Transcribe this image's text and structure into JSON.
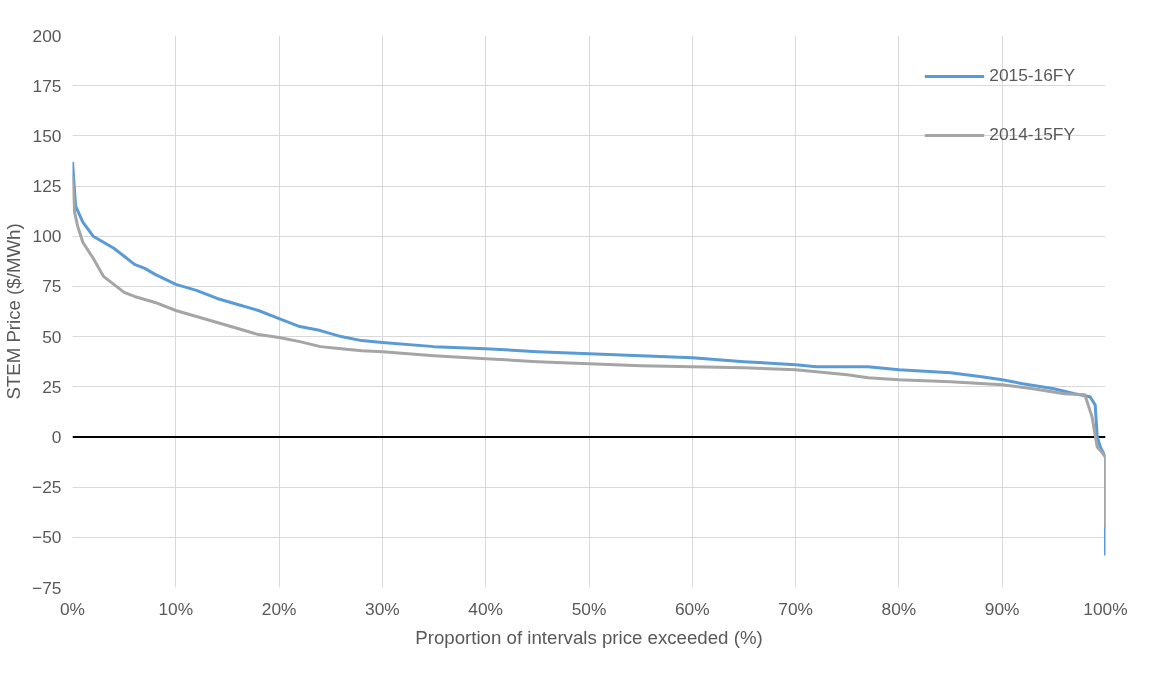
{
  "chart_data": {
    "type": "line",
    "xlabel": "Proportion of intervals price exceeded (%)",
    "ylabel": "STEM Price ($/MWh)",
    "xlim": [
      0,
      100
    ],
    "ylim": [
      -75,
      200
    ],
    "xticks": [
      {
        "value": 0,
        "label": "0%"
      },
      {
        "value": 10,
        "label": "10%"
      },
      {
        "value": 20,
        "label": "20%"
      },
      {
        "value": 30,
        "label": "30%"
      },
      {
        "value": 40,
        "label": "40%"
      },
      {
        "value": 50,
        "label": "50%"
      },
      {
        "value": 60,
        "label": "60%"
      },
      {
        "value": 70,
        "label": "70%"
      },
      {
        "value": 80,
        "label": "80%"
      },
      {
        "value": 90,
        "label": "90%"
      },
      {
        "value": 100,
        "label": "100%"
      }
    ],
    "yticks": [
      -75,
      -50,
      -25,
      0,
      25,
      50,
      75,
      100,
      125,
      150,
      175,
      200
    ],
    "grid": true,
    "legend": "top right",
    "line_style": "solid",
    "ref_lines": [
      {
        "axis": "y",
        "value": 0,
        "label": null,
        "color": "#000000"
      }
    ],
    "series": [
      {
        "name": "2015-16FY",
        "color": "#5b9bd5",
        "x": [
          0,
          0.3,
          1,
          2,
          3,
          4,
          5,
          6,
          7,
          8,
          10,
          12,
          14,
          16,
          18,
          20,
          22,
          24,
          26,
          28,
          30,
          35,
          40,
          45,
          50,
          55,
          60,
          65,
          70,
          72,
          77,
          80,
          85,
          88,
          90,
          92,
          95,
          97,
          98.5,
          99,
          99.2,
          99.5,
          100,
          100
        ],
        "values": [
          137,
          115,
          107,
          100,
          97,
          94,
          90,
          86,
          84,
          81,
          76,
          73,
          69,
          66,
          63,
          59,
          55,
          53,
          50,
          48,
          47,
          45,
          44,
          42.5,
          41.5,
          40.5,
          39.5,
          37.5,
          36,
          35,
          35,
          33.5,
          32,
          30,
          28.5,
          26.5,
          24,
          21.5,
          20,
          16,
          0,
          -5,
          -10,
          -59
        ]
      },
      {
        "name": "2014-15FY",
        "color": "#a5a5a5",
        "x": [
          0,
          0.2,
          0.5,
          1,
          2,
          3,
          4,
          5,
          6,
          8,
          10,
          12,
          14,
          16,
          18,
          20,
          22,
          24,
          26,
          28,
          30,
          35,
          40,
          45,
          50,
          55,
          60,
          65,
          70,
          75,
          77,
          80,
          85,
          90,
          93,
          96,
          98,
          98.7,
          99.2,
          99.7,
          100,
          100
        ],
        "values": [
          130,
          112,
          105,
          97,
          89,
          80,
          76,
          72,
          70,
          67,
          63,
          60,
          57,
          54,
          51,
          49.5,
          47.5,
          45,
          44,
          43,
          42.5,
          40.5,
          39,
          37.5,
          36.5,
          35.5,
          35,
          34.5,
          33.5,
          31,
          29.5,
          28.5,
          27.5,
          26,
          24,
          21.5,
          21,
          10,
          -5,
          -8,
          -10,
          -45
        ]
      }
    ]
  }
}
